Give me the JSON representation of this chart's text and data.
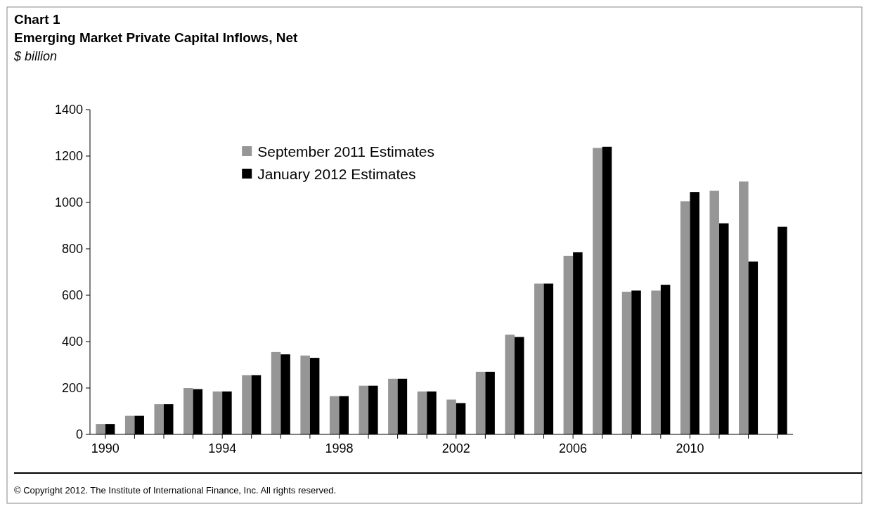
{
  "chart_data": {
    "type": "bar",
    "title": "Chart 1",
    "subtitle": "Emerging Market Private Capital Inflows, Net",
    "ylabel": "$ billion",
    "categories": [
      "1990",
      null,
      null,
      null,
      "1994",
      null,
      null,
      null,
      "1998",
      null,
      null,
      null,
      "2002",
      null,
      null,
      null,
      "2006",
      null,
      null,
      null,
      "2010",
      null,
      null,
      null
    ],
    "series": [
      {
        "name": "September 2011 Estimates",
        "color": "#969696",
        "values": [
          45,
          80,
          130,
          200,
          185,
          255,
          355,
          340,
          165,
          210,
          240,
          185,
          150,
          270,
          430,
          650,
          770,
          1235,
          615,
          620,
          1005,
          1050,
          1090,
          null
        ]
      },
      {
        "name": "January 2012 Estimates",
        "color": "#000000",
        "values": [
          45,
          80,
          130,
          195,
          185,
          255,
          345,
          330,
          165,
          210,
          240,
          185,
          135,
          270,
          420,
          650,
          785,
          1240,
          620,
          645,
          1045,
          910,
          745,
          895
        ]
      }
    ],
    "ylim": [
      0,
      1400
    ],
    "yticks": [
      0,
      200,
      400,
      600,
      800,
      1000,
      1200,
      1400
    ],
    "grid": false,
    "legend": "top left",
    "annotations": [
      "© Copyright 2012.  The Institute of International Finance, Inc. All rights reserved."
    ]
  }
}
